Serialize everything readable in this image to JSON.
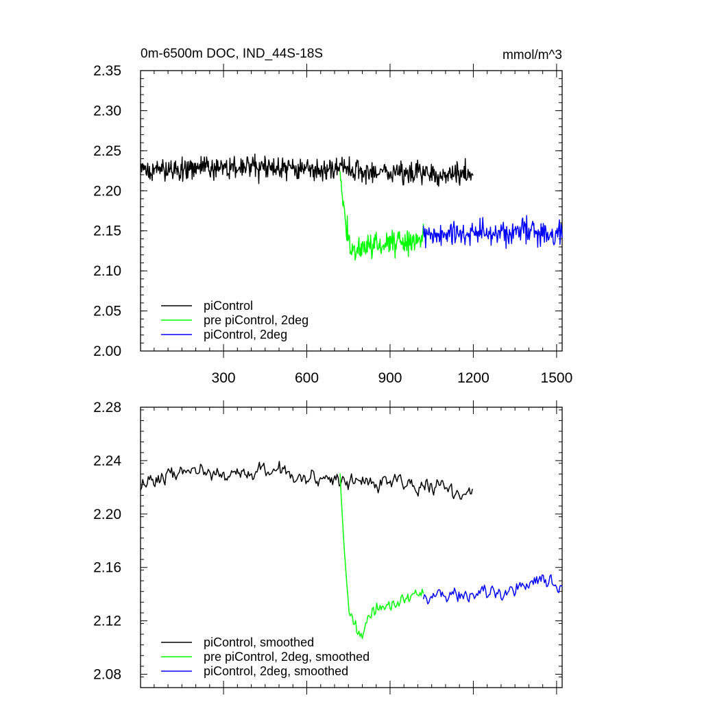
{
  "chart_data": [
    {
      "type": "line",
      "title": "0m-6500m DOC, IND_44S-18S",
      "units": "mmol/m^3",
      "xlim": [
        1,
        1520
      ],
      "ylim": [
        2.0,
        2.35
      ],
      "xticks": [
        300,
        600,
        900,
        1200,
        1500
      ],
      "yticks": [
        2.0,
        2.05,
        2.1,
        2.15,
        2.2,
        2.25,
        2.3,
        2.35
      ],
      "ytick_labels": [
        "2.00",
        "2.05",
        "2.10",
        "2.15",
        "2.20",
        "2.25",
        "2.30",
        "2.35"
      ],
      "xtick_labels": [
        "300",
        "600",
        "900",
        "1200",
        "1500"
      ],
      "show_x_labels": true,
      "legend_position": "bottom-left",
      "series": [
        {
          "name": "piControl",
          "color": "#000000",
          "x_start": 1,
          "x_end": 1200,
          "segments": [
            [
              1,
              2.224
            ],
            [
              150,
              2.228
            ],
            [
              300,
              2.229
            ],
            [
              450,
              2.229
            ],
            [
              600,
              2.226
            ],
            [
              720,
              2.226
            ],
            [
              900,
              2.223
            ],
            [
              1050,
              2.222
            ],
            [
              1200,
              2.221
            ]
          ],
          "noise": 0.021,
          "smoothed": false
        },
        {
          "name": "pre piControl, 2deg",
          "color": "#00ff00",
          "x_start": 720,
          "x_end": 1020,
          "segments": [
            [
              720,
              2.23
            ],
            [
              735,
              2.165
            ],
            [
              760,
              2.128
            ],
            [
              800,
              2.128
            ],
            [
              860,
              2.133
            ],
            [
              930,
              2.136
            ],
            [
              1020,
              2.14
            ]
          ],
          "noise": 0.024,
          "smoothed": false
        },
        {
          "name": "piControl, 2deg",
          "color": "#0000ff",
          "x_start": 1020,
          "x_end": 1520,
          "segments": [
            [
              1020,
              2.142
            ],
            [
              1150,
              2.146
            ],
            [
              1300,
              2.147
            ],
            [
              1420,
              2.15
            ],
            [
              1520,
              2.148
            ]
          ],
          "noise": 0.024,
          "smoothed": false
        }
      ]
    },
    {
      "type": "line",
      "title": "",
      "units": "",
      "xlim": [
        1,
        1520
      ],
      "ylim": [
        2.07,
        2.28
      ],
      "xticks": [
        300,
        600,
        900,
        1200,
        1500
      ],
      "yticks": [
        2.08,
        2.12,
        2.16,
        2.2,
        2.24,
        2.28
      ],
      "ytick_labels": [
        "2.08",
        "2.12",
        "2.16",
        "2.20",
        "2.24",
        "2.28"
      ],
      "xtick_labels": [],
      "show_x_labels": false,
      "legend_position": "bottom-left",
      "series": [
        {
          "name": "piControl, smoothed",
          "color": "#000000",
          "x_start": 1,
          "x_end": 1200,
          "segments": [
            [
              1,
              2.222
            ],
            [
              150,
              2.232
            ],
            [
              300,
              2.23
            ],
            [
              450,
              2.233
            ],
            [
              600,
              2.228
            ],
            [
              720,
              2.226
            ],
            [
              900,
              2.224
            ],
            [
              1050,
              2.222
            ],
            [
              1200,
              2.215
            ]
          ],
          "noise": 0.014,
          "smoothed": true
        },
        {
          "name": "pre piControl, 2deg, smoothed",
          "color": "#00ff00",
          "x_start": 720,
          "x_end": 1020,
          "segments": [
            [
              720,
              2.228
            ],
            [
              735,
              2.175
            ],
            [
              750,
              2.13
            ],
            [
              790,
              2.112
            ],
            [
              850,
              2.128
            ],
            [
              930,
              2.135
            ],
            [
              1020,
              2.14
            ]
          ],
          "noise": 0.015,
          "smoothed": true
        },
        {
          "name": "piControl, 2deg, smoothed",
          "color": "#0000ff",
          "x_start": 1020,
          "x_end": 1520,
          "segments": [
            [
              1020,
              2.138
            ],
            [
              1150,
              2.142
            ],
            [
              1300,
              2.142
            ],
            [
              1420,
              2.15
            ],
            [
              1520,
              2.145
            ]
          ],
          "noise": 0.016,
          "smoothed": true
        }
      ]
    }
  ]
}
